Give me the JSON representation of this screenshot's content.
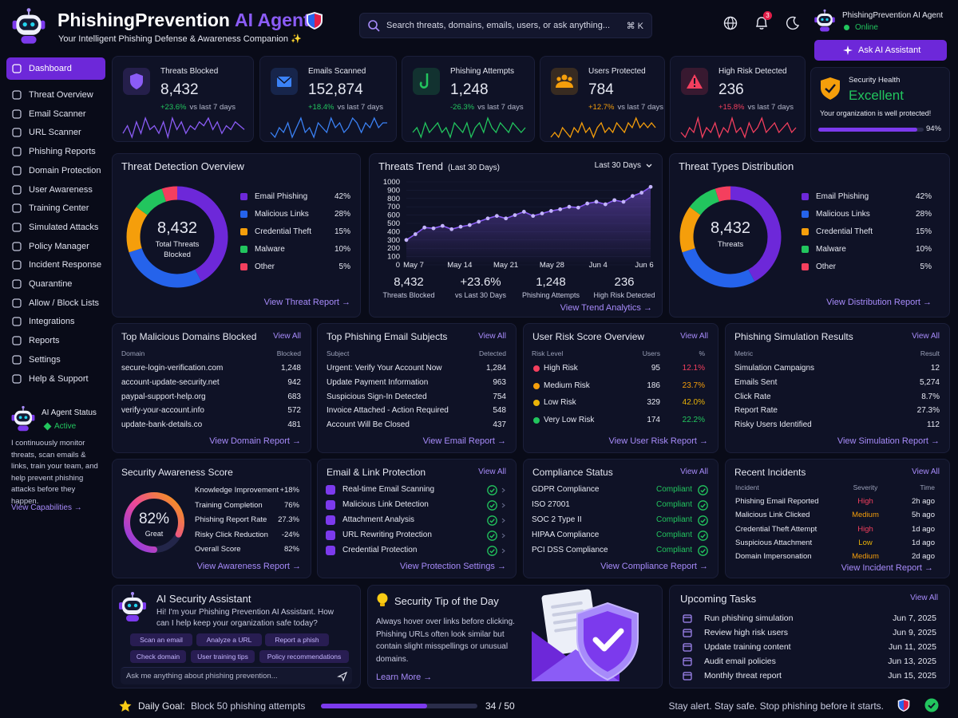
{
  "header": {
    "brand": "PhishingPrevention",
    "brand_accent": "AI Agent",
    "tagline": "Your Intelligent Phishing Defense & Awareness Companion ✨",
    "search_placeholder": "Search threats, domains, emails, users, or ask anything...",
    "shortcut": "⌘ K",
    "notifications": "3",
    "user_name": "PhishingPrevention AI Agent",
    "user_status": "Online",
    "ask_button": "Ask AI Assistant"
  },
  "sidebar": {
    "items": [
      "Dashboard",
      "Threat Overview",
      "Email Scanner",
      "URL Scanner",
      "Phishing Reports",
      "Domain Protection",
      "User Awareness",
      "Training Center",
      "Simulated Attacks",
      "Policy Manager",
      "Incident Response",
      "Quarantine",
      "Allow / Block Lists",
      "Integrations",
      "Reports",
      "Settings",
      "Help & Support"
    ]
  },
  "agent_status": {
    "title": "AI Agent Status",
    "status": "Active",
    "text": "I continuously monitor threats, scan emails & links, train your team, and help prevent phishing attacks before they happen.",
    "link": "View Capabilities →"
  },
  "stats": [
    {
      "label": "Threats Blocked",
      "value": "8,432",
      "change": "+23.6%",
      "period": "vs last 7 days",
      "color": "#8b5cf6",
      "change_color": "#22c55e",
      "spark": [
        3,
        5,
        2,
        6,
        3,
        7,
        4,
        5,
        3,
        6,
        2,
        7,
        4,
        6,
        3,
        5,
        4,
        6,
        5,
        7,
        4,
        6,
        3,
        5,
        4,
        6,
        5,
        4
      ]
    },
    {
      "label": "Emails Scanned",
      "value": "152,874",
      "change": "+18.4%",
      "period": "vs last 7 days",
      "color": "#3b82f6",
      "change_color": "#22c55e",
      "spark": [
        4,
        3,
        5,
        4,
        6,
        3,
        5,
        7,
        4,
        5,
        3,
        6,
        5,
        4,
        7,
        5,
        6,
        4,
        5,
        7,
        6,
        4,
        6,
        5,
        7,
        5,
        6,
        6
      ]
    },
    {
      "label": "Phishing Attempts",
      "value": "1,248",
      "change": "-26.3%",
      "period": "vs last 7 days",
      "color": "#22c55e",
      "change_color": "#22c55e",
      "spark": [
        4,
        5,
        3,
        6,
        4,
        5,
        6,
        4,
        5,
        3,
        6,
        5,
        4,
        6,
        3,
        5,
        6,
        4,
        7,
        5,
        4,
        6,
        5,
        4,
        6,
        5,
        4,
        5
      ]
    },
    {
      "label": "Users Protected",
      "value": "784",
      "change": "+12.7%",
      "period": "vs last 7 days",
      "color": "#f59e0b",
      "change_color": "#f59e0b",
      "spark": [
        3,
        4,
        3,
        5,
        4,
        3,
        5,
        4,
        6,
        4,
        5,
        3,
        5,
        6,
        4,
        5,
        4,
        6,
        5,
        4,
        6,
        5,
        7,
        5,
        6,
        5,
        6,
        5
      ]
    },
    {
      "label": "High Risk Detected",
      "value": "236",
      "change": "+15.8%",
      "period": "vs last 7 days",
      "color": "#f43f5e",
      "change_color": "#f43f5e",
      "spark": [
        4,
        3,
        5,
        4,
        7,
        3,
        5,
        4,
        6,
        3,
        5,
        4,
        7,
        4,
        5,
        3,
        6,
        4,
        5,
        7,
        4,
        5,
        6,
        4,
        5,
        6,
        4,
        5
      ]
    }
  ],
  "security_health": {
    "title": "Security Health",
    "status": "Excellent",
    "text": "Your organization is well protected!",
    "value": 94,
    "label": "94%"
  },
  "threat_detection": {
    "title": "Threat Detection Overview",
    "total": "8,432",
    "total_label": "Total Threats Blocked",
    "segments": [
      {
        "name": "Email Phishing",
        "color": "#6d28d9",
        "value": 42,
        "label": "42%"
      },
      {
        "name": "Malicious Links",
        "color": "#2563eb",
        "value": 28,
        "label": "28%"
      },
      {
        "name": "Credential Theft",
        "color": "#f59e0b",
        "value": 15,
        "label": "15%"
      },
      {
        "name": "Malware",
        "color": "#22c55e",
        "value": 10,
        "label": "10%"
      },
      {
        "name": "Other",
        "color": "#f43f5e",
        "value": 5,
        "label": "5%"
      }
    ],
    "link": "View Threat Report →"
  },
  "threats_trend": {
    "title": "Threats Trend",
    "subtitle": "(Last 30 Days)",
    "range": "Last 30 Days",
    "ylim": [
      0,
      1000
    ],
    "yticks": [
      0,
      100,
      200,
      300,
      400,
      500,
      600,
      700,
      800,
      900,
      1000
    ],
    "x_labels": [
      "May 7",
      "May 14",
      "May 21",
      "May 28",
      "Jun 4",
      "Jun 6"
    ],
    "color": "#8b5cf6",
    "values": [
      300,
      370,
      450,
      440,
      470,
      430,
      460,
      480,
      520,
      560,
      590,
      560,
      600,
      640,
      590,
      620,
      650,
      670,
      700,
      690,
      740,
      760,
      730,
      780,
      760,
      830,
      870,
      940
    ],
    "summary": [
      {
        "value": "8,432",
        "label": "Threats Blocked"
      },
      {
        "value": "+23.6%",
        "label": "vs Last 30 Days"
      },
      {
        "value": "1,248",
        "label": "Phishing Attempts"
      },
      {
        "value": "236",
        "label": "High Risk Detected"
      }
    ],
    "link": "View Trend Analytics →"
  },
  "threat_types": {
    "title": "Threat Types Distribution",
    "total": "8,432",
    "total_label": "Threats",
    "segments": [
      {
        "name": "Email Phishing",
        "color": "#6d28d9",
        "value": 42,
        "label": "42%"
      },
      {
        "name": "Malicious Links",
        "color": "#2563eb",
        "value": 28,
        "label": "28%"
      },
      {
        "name": "Credential Theft",
        "color": "#f59e0b",
        "value": 15,
        "label": "15%"
      },
      {
        "name": "Malware",
        "color": "#22c55e",
        "value": 10,
        "label": "10%"
      },
      {
        "name": "Other",
        "color": "#f43f5e",
        "value": 5,
        "label": "5%"
      }
    ],
    "link": "View Distribution Report →"
  },
  "domains": {
    "title": "Top Malicious Domains Blocked",
    "view_all": "View All",
    "columns": [
      "Domain",
      "Blocked"
    ],
    "rows": [
      [
        "secure-login-verification.com",
        "1,248"
      ],
      [
        "account-update-security.net",
        "942"
      ],
      [
        "paypal-support-help.org",
        "683"
      ],
      [
        "verify-your-account.info",
        "572"
      ],
      [
        "update-bank-details.co",
        "481"
      ]
    ],
    "link": "View Domain Report →"
  },
  "subjects": {
    "title": "Top Phishing Email Subjects",
    "view_all": "View All",
    "columns": [
      "Subject",
      "Detected"
    ],
    "rows": [
      [
        "Urgent: Verify Your Account Now",
        "1,284"
      ],
      [
        "Update Payment Information",
        "963"
      ],
      [
        "Suspicious Sign-In Detected",
        "754"
      ],
      [
        "Invoice Attached - Action Required",
        "548"
      ],
      [
        "Account Will Be Closed",
        "437"
      ]
    ],
    "link": "View Email Report →"
  },
  "user_risk": {
    "title": "User Risk Score Overview",
    "view_all": "View All",
    "columns": [
      "Risk Level",
      "Users",
      "%"
    ],
    "rows": [
      [
        "High Risk",
        "95",
        "12.1%"
      ],
      [
        "Medium Risk",
        "186",
        "23.7%"
      ],
      [
        "Low Risk",
        "329",
        "42.0%"
      ],
      [
        "Very Low Risk",
        "174",
        "22.2%"
      ]
    ],
    "colors": [
      "#f43f5e",
      "#f59e0b",
      "#eab308",
      "#22c55e"
    ],
    "link": "View User Risk Report →"
  },
  "simulation": {
    "title": "Phishing Simulation Results",
    "view_all": "View All",
    "columns": [
      "Metric",
      "Result"
    ],
    "rows": [
      [
        "Simulation Campaigns",
        "12"
      ],
      [
        "Emails Sent",
        "5,274"
      ],
      [
        "Click Rate",
        "8.7%"
      ],
      [
        "Report Rate",
        "27.3%"
      ],
      [
        "Risky Users Identified",
        "112"
      ]
    ],
    "link": "View Simulation Report →"
  },
  "awareness": {
    "title": "Security Awareness Score",
    "score": {
      "value": 82,
      "label": "82%"
    },
    "grade": "Great",
    "rows": [
      [
        "Knowledge Improvement",
        "+18%"
      ],
      [
        "Training Completion",
        "76%"
      ],
      [
        "Phishing Report Rate",
        "27.3%"
      ],
      [
        "Risky Click Reduction",
        "-24%"
      ],
      [
        "Overall Score",
        "82%"
      ]
    ],
    "link": "View Awareness Report →"
  },
  "protection": {
    "title": "Email & Link Protection",
    "view_all": "View All",
    "items": [
      "Real-time Email Scanning",
      "Malicious Link Detection",
      "Attachment Analysis",
      "URL Rewriting Protection",
      "Credential Protection"
    ],
    "link": "View Protection Settings →"
  },
  "compliance": {
    "title": "Compliance Status",
    "view_all": "View All",
    "items": [
      [
        "GDPR Compliance",
        "Compliant"
      ],
      [
        "ISO 27001",
        "Compliant"
      ],
      [
        "SOC 2 Type II",
        "Compliant"
      ],
      [
        "HIPAA Compliance",
        "Compliant"
      ],
      [
        "PCI DSS Compliance",
        "Compliant"
      ]
    ],
    "link": "View Compliance Report →"
  },
  "incidents": {
    "title": "Recent Incidents",
    "view_all": "View All",
    "columns": [
      "Incident",
      "Severity",
      "Time"
    ],
    "rows": [
      [
        "Phishing Email Reported",
        "High",
        "2h ago"
      ],
      [
        "Malicious Link Clicked",
        "Medium",
        "5h ago"
      ],
      [
        "Credential Theft Attempt",
        "High",
        "1d ago"
      ],
      [
        "Suspicious Attachment",
        "Low",
        "1d ago"
      ],
      [
        "Domain Impersonation",
        "Medium",
        "2d ago"
      ]
    ],
    "severity_colors": {
      "High": "#f43f5e",
      "Medium": "#f59e0b",
      "Low": "#eab308"
    },
    "link": "View Incident Report →"
  },
  "assistant": {
    "title": "AI Security Assistant",
    "text": "Hi! I'm your Phishing Prevention AI Assistant. How can I help keep your organization safe today?",
    "chips": [
      "Scan an email",
      "Analyze a URL",
      "Report a phish",
      "Check domain",
      "User training tips",
      "Policy recommendations"
    ],
    "placeholder": "Ask me anything about phishing prevention..."
  },
  "tip": {
    "title": "Security Tip of the Day",
    "text": "Always hover over links before clicking. Phishing URLs often look similar but contain slight misspellings or unusual domains.",
    "link": "Learn More →"
  },
  "tasks": {
    "title": "Upcoming Tasks",
    "view_all": "View All",
    "rows": [
      [
        "Run phishing simulation",
        "Jun 7, 2025"
      ],
      [
        "Review high risk users",
        "Jun 9, 2025"
      ],
      [
        "Update training content",
        "Jun 11, 2025"
      ],
      [
        "Audit email policies",
        "Jun 13, 2025"
      ],
      [
        "Monthly threat report",
        "Jun 15, 2025"
      ]
    ]
  },
  "footer": {
    "goal_label": "Daily Goal:",
    "goal_text": "Block 50 phishing attempts",
    "progress": {
      "done": 34,
      "total": 50,
      "label": "34 / 50"
    },
    "slogan": "Stay alert. Stay safe. Stop phishing before it starts."
  }
}
